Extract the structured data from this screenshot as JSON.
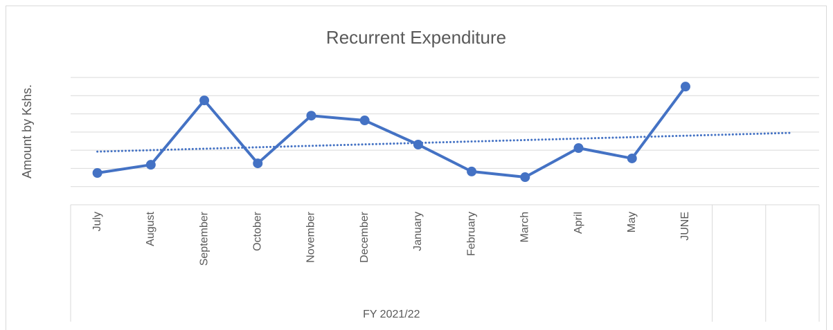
{
  "chart_data": {
    "type": "line",
    "title": "Recurrent Expenditure",
    "y_label": "Amount by Kshs.",
    "categories": [
      "July",
      "August",
      "September",
      "October",
      "November",
      "December",
      "January",
      "February",
      "March",
      "April",
      "May",
      "JUNE",
      null,
      null
    ],
    "group_label": "FY 2021/22",
    "values": [
      1.75,
      2.2,
      5.74,
      2.28,
      4.9,
      4.64,
      3.31,
      1.83,
      1.52,
      3.12,
      2.55,
      6.5,
      null,
      null
    ],
    "color": "#4472c4",
    "trendline": "linear",
    "ylim": [
      0,
      7
    ],
    "yticks": [
      0,
      1,
      2,
      3,
      4,
      5,
      6,
      7
    ],
    "grid": true
  }
}
